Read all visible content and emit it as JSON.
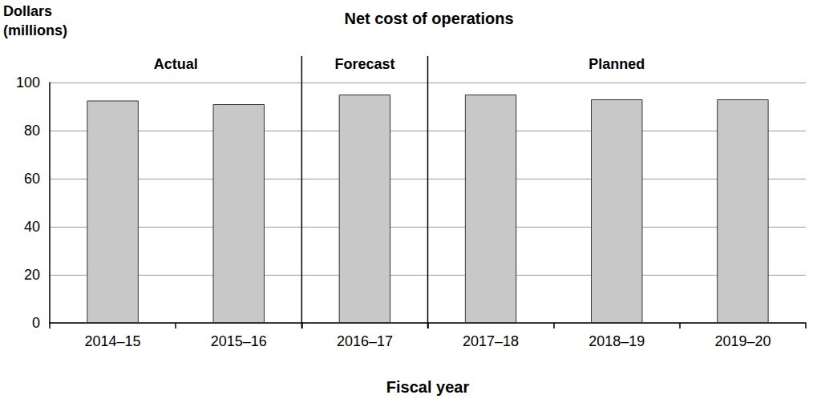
{
  "chart_data": {
    "type": "bar",
    "title": "Net cost of operations",
    "y_label": "Dollars (millions)",
    "x_label": "Fiscal year",
    "categories": [
      "2014–15",
      "2015–16",
      "2016–17",
      "2017–18",
      "2018–19",
      "2019–20"
    ],
    "values": [
      92.5,
      91,
      95,
      95,
      93,
      93
    ],
    "color": "#c8c8c8",
    "ylim": [
      0,
      100
    ],
    "yticks": [
      0,
      20,
      40,
      60,
      80,
      100
    ],
    "grid": true,
    "groups": [
      {
        "label": "Actual",
        "categories": [
          "2014–15",
          "2015–16"
        ]
      },
      {
        "label": "Forecast",
        "categories": [
          "2016–17"
        ]
      },
      {
        "label": "Planned",
        "categories": [
          "2017–18",
          "2018–19",
          "2019–20"
        ]
      }
    ]
  }
}
